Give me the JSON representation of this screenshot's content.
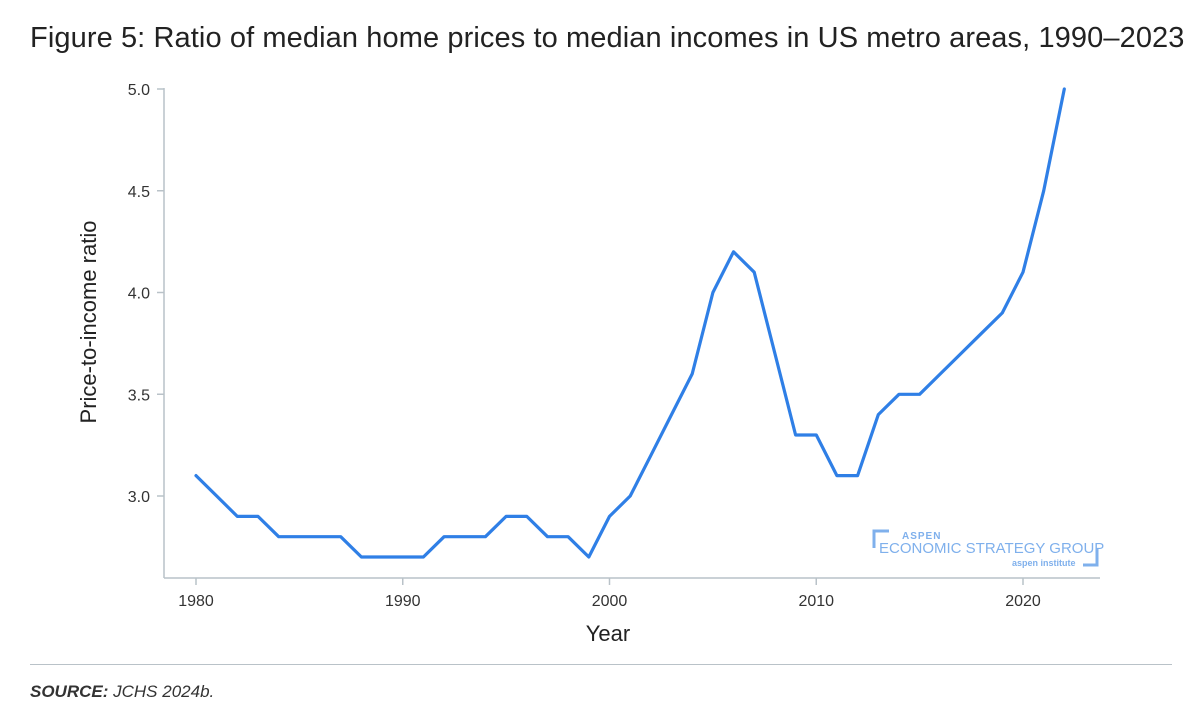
{
  "title": "Figure 5: Ratio of median home prices to median incomes in US metro areas, 1990–2023",
  "source": {
    "label": "SOURCE:",
    "text": " JCHS 2024b."
  },
  "logo": {
    "top": "ASPEN",
    "main": "ECONOMIC STRATEGY GROUP",
    "sub": "aspen institute"
  },
  "colors": {
    "line": "#2f7fe6",
    "axis": "#b9c2c8",
    "logo": "#7fb0ec"
  },
  "chart_data": {
    "type": "line",
    "xlabel": "Year",
    "ylabel": "Price-to-income ratio",
    "xlim": [
      1979,
      2024
    ],
    "ylim": [
      2.6,
      5.0
    ],
    "xticks": [
      1980,
      1990,
      2000,
      2010,
      2020
    ],
    "yticks": [
      3.0,
      3.5,
      4.0,
      4.5,
      5.0
    ],
    "ytick_labels": [
      "3.0",
      "3.5",
      "4.0",
      "4.5",
      "5.0"
    ],
    "grid": false,
    "series": [
      {
        "x": [
          1980,
          1981,
          1982,
          1983,
          1984,
          1985,
          1986,
          1987,
          1988,
          1989,
          1990,
          1991,
          1992,
          1993,
          1994,
          1995,
          1996,
          1997,
          1998,
          1999,
          2000,
          2001,
          2002,
          2003,
          2004,
          2005,
          2006,
          2007,
          2008,
          2009,
          2010,
          2011,
          2012,
          2013,
          2014,
          2015,
          2016,
          2017,
          2018,
          2019,
          2020,
          2021,
          2022
        ],
        "values": [
          3.1,
          3.0,
          2.9,
          2.9,
          2.8,
          2.8,
          2.8,
          2.8,
          2.7,
          2.7,
          2.7,
          2.7,
          2.8,
          2.8,
          2.8,
          2.9,
          2.9,
          2.8,
          2.8,
          2.7,
          2.9,
          3.0,
          3.2,
          3.4,
          3.6,
          4.0,
          4.2,
          4.1,
          3.7,
          3.3,
          3.3,
          3.1,
          3.1,
          3.4,
          3.5,
          3.5,
          3.6,
          3.7,
          3.8,
          3.9,
          4.1,
          4.5,
          5.0
        ]
      }
    ]
  }
}
